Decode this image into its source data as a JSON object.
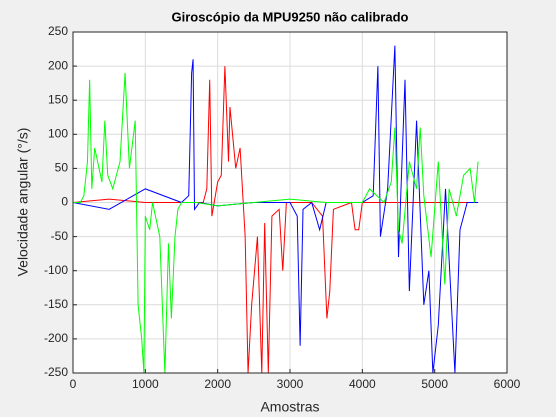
{
  "chart_data": {
    "type": "line",
    "title": "Giroscópio da MPU9250 não calibrado",
    "xlabel": "Amostras",
    "ylabel": "Velocidade angular (°/s)",
    "xlim": [
      0,
      6000
    ],
    "xticks": [
      0,
      1000,
      2000,
      3000,
      4000,
      5000,
      6000
    ],
    "ylim": [
      -250,
      250
    ],
    "yticks": [
      -250,
      -200,
      -150,
      -100,
      -50,
      0,
      50,
      100,
      150,
      200,
      250
    ],
    "grid": true,
    "series": [
      {
        "color": "#ff0000",
        "x": [
          0,
          500,
          1000,
          1500,
          1800,
          1850,
          1890,
          1920,
          2000,
          2050,
          2100,
          2150,
          2170,
          2250,
          2310,
          2380,
          2420,
          2470,
          2550,
          2610,
          2650,
          2700,
          2750,
          2850,
          2900,
          2950,
          3300,
          3450,
          3510,
          3550,
          3600,
          3850,
          3900,
          3950,
          4000,
          5600
        ],
        "values": [
          0,
          5,
          0,
          0,
          0,
          20,
          180,
          -20,
          30,
          40,
          200,
          60,
          140,
          50,
          80,
          -50,
          -250,
          -150,
          -50,
          -250,
          -30,
          -250,
          -20,
          -10,
          -100,
          0,
          0,
          -20,
          -170,
          -130,
          -10,
          0,
          -40,
          -40,
          0,
          0
        ]
      },
      {
        "color": "#0000ff",
        "x": [
          0,
          500,
          1000,
          1500,
          1600,
          1640,
          1660,
          1680,
          1750,
          2000,
          2500,
          3000,
          3100,
          3140,
          3180,
          3300,
          3410,
          3500,
          4000,
          4150,
          4215,
          4250,
          4350,
          4450,
          4500,
          4590,
          4650,
          4750,
          4850,
          4920,
          4975,
          5050,
          5150,
          5280,
          5350,
          5450,
          5600
        ],
        "values": [
          0,
          -10,
          20,
          0,
          10,
          190,
          210,
          -10,
          0,
          -5,
          0,
          0,
          -20,
          -210,
          -10,
          0,
          -40,
          0,
          0,
          10,
          200,
          -50,
          20,
          230,
          -80,
          180,
          -130,
          120,
          -150,
          -100,
          -250,
          -180,
          20,
          -250,
          -40,
          0,
          0
        ]
      },
      {
        "color": "#00ff00",
        "x": [
          0,
          100,
          150,
          200,
          230,
          260,
          300,
          400,
          440,
          480,
          550,
          650,
          720,
          780,
          860,
          900,
          950,
          980,
          1000,
          1060,
          1100,
          1200,
          1270,
          1320,
          1360,
          1410,
          1450,
          1500,
          1700,
          2000,
          2500,
          3000,
          3500,
          4000,
          4100,
          4300,
          4400,
          4450,
          4500,
          4550,
          4650,
          4750,
          4800,
          4850,
          4950,
          5050,
          5140,
          5200,
          5300,
          5400,
          5490,
          5550,
          5600
        ],
        "values": [
          0,
          0,
          10,
          60,
          180,
          20,
          80,
          30,
          120,
          40,
          20,
          60,
          190,
          50,
          120,
          -150,
          -200,
          -250,
          -20,
          -40,
          0,
          -50,
          -250,
          -60,
          -170,
          -50,
          -10,
          0,
          0,
          -5,
          0,
          5,
          0,
          0,
          20,
          0,
          30,
          110,
          -40,
          -60,
          60,
          20,
          110,
          10,
          -80,
          60,
          -120,
          20,
          -20,
          40,
          50,
          0,
          60
        ]
      }
    ]
  }
}
